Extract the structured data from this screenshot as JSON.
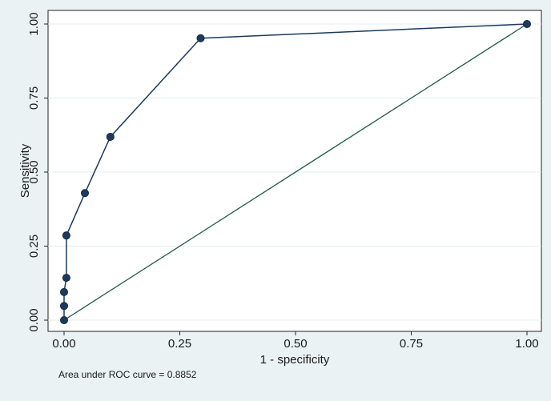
{
  "chart_data": {
    "type": "line",
    "xlabel": "1 - specificity",
    "ylabel": "Sensitivity",
    "xlim": [
      0,
      1
    ],
    "ylim": [
      0,
      1
    ],
    "x_ticks": [
      "0.00",
      "0.25",
      "0.50",
      "0.75",
      "1.00"
    ],
    "y_ticks": [
      "0.00",
      "0.25",
      "0.50",
      "0.75",
      "1.00"
    ],
    "grid": true,
    "series": [
      {
        "points": [
          {
            "x": 0.0,
            "y": 0.0
          },
          {
            "x": 0.0,
            "y": 0.048
          },
          {
            "x": 0.0,
            "y": 0.095
          },
          {
            "x": 0.005,
            "y": 0.143
          },
          {
            "x": 0.005,
            "y": 0.286
          },
          {
            "x": 0.045,
            "y": 0.429
          },
          {
            "x": 0.1,
            "y": 0.619
          },
          {
            "x": 0.295,
            "y": 0.952
          },
          {
            "x": 1.0,
            "y": 1.0
          }
        ],
        "color": "#1b3a5c",
        "markers": true
      },
      {
        "points": [
          {
            "x": 0,
            "y": 0
          },
          {
            "x": 1,
            "y": 1
          }
        ],
        "color": "#1f5a4a",
        "markers": false
      }
    ],
    "annotation": "Area under ROC curve = 0.8852"
  },
  "colors": {
    "background": "#eaf2f3",
    "plot_area": "#ffffff",
    "grid": "#e6ecef",
    "roc_line": "#1b3a5c",
    "reference_line": "#1f5a4a"
  }
}
